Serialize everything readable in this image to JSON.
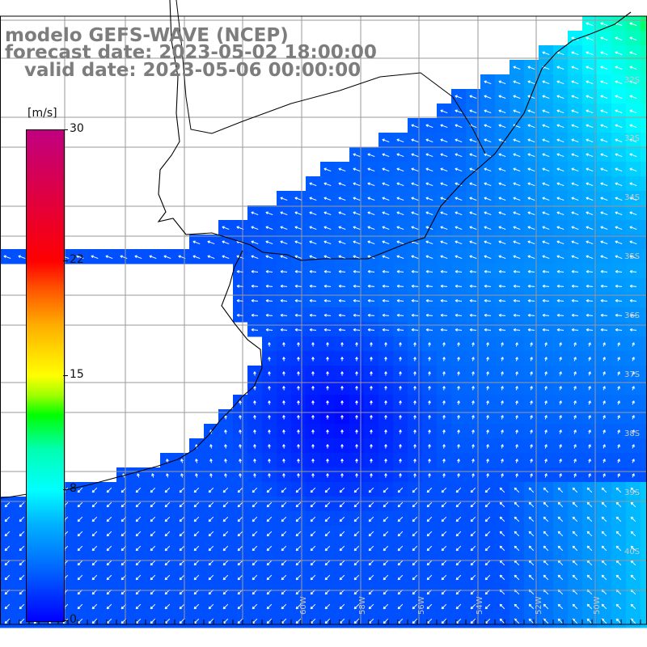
{
  "title": {
    "line1": "modelo GEFS-WAVE (NCEP)",
    "line2": "forecast date: 2023-05-02 18:00:00",
    "line3": "   valid date: 2023-05-06 00:00:00"
  },
  "colorbar": {
    "unit": "[m/s]",
    "ticks": [
      "30",
      "22",
      "15",
      "8",
      "0"
    ],
    "tick_values": [
      30,
      22,
      15,
      8,
      0
    ],
    "colors": {
      "min": "#0000ff",
      "mid": "#00ffff",
      "green": "#00ff00",
      "yellow": "#ffff00",
      "red": "#ff0000",
      "max": "#c00080"
    }
  },
  "lat_labels": [
    "32S",
    "33S",
    "34S",
    "35S",
    "36S",
    "37S",
    "38S",
    "39S",
    "40S"
  ],
  "lon_labels": [
    "60W",
    "58W",
    "56W",
    "54W",
    "52W",
    "50W"
  ],
  "colors": {
    "land": "#ffffff",
    "grid": "#9a9a9a",
    "coast": "#000000",
    "arrow": "#ffffff",
    "title": "#7d7d7d"
  }
}
